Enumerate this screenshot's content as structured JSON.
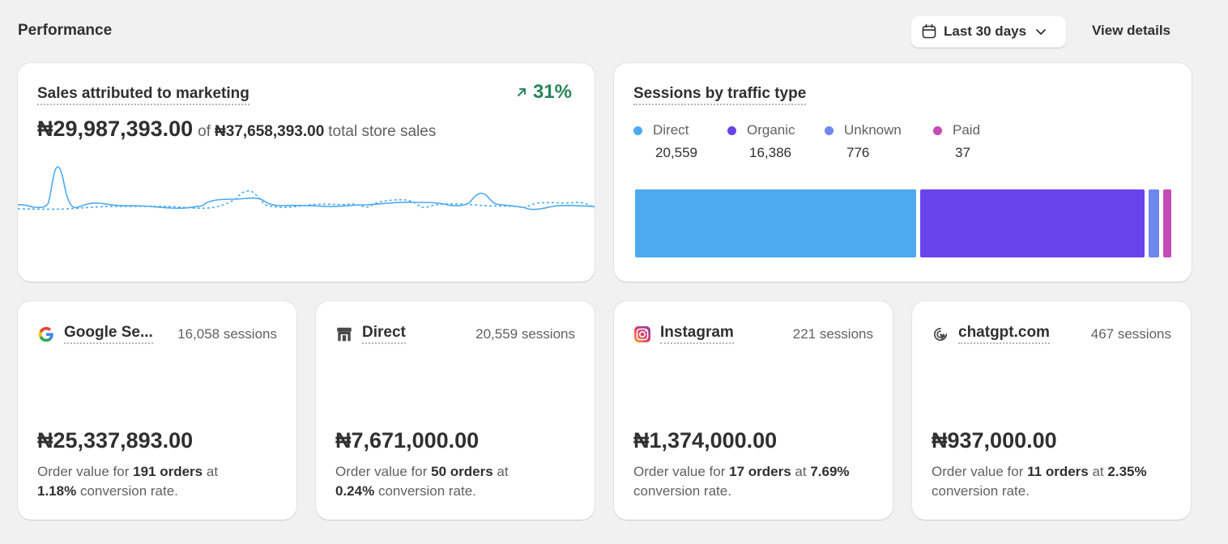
{
  "header": {
    "title": "Performance",
    "date_range": "Last 30 days",
    "view_details": "View details"
  },
  "sales_card": {
    "title": "Sales attributed to marketing",
    "change": "31%",
    "amount": "₦29,987,393.00",
    "of_label": "of",
    "total_amount": "₦37,658,393.00",
    "total_suffix": "total store sales"
  },
  "sessions_card": {
    "title": "Sessions by traffic type",
    "legend": [
      {
        "label": "Direct",
        "value": "20,559",
        "color": "#4daaf0"
      },
      {
        "label": "Organic",
        "value": "16,386",
        "color": "#6943eb"
      },
      {
        "label": "Unknown",
        "value": "776",
        "color": "#6f87ee"
      },
      {
        "label": "Paid",
        "value": "37",
        "color": "#c44ab5"
      }
    ]
  },
  "chart_data": {
    "type": "stacked-bar",
    "categories": [
      "Direct",
      "Organic",
      "Unknown",
      "Paid"
    ],
    "values": [
      20559,
      16386,
      776,
      37
    ]
  },
  "sources": [
    {
      "icon": "google-icon",
      "name": "Google Se...",
      "sessions": "16,058 sessions",
      "value": "₦25,337,893.00",
      "desc_prefix": "Order value for",
      "orders": "191 orders",
      "desc_at": "at",
      "rate": "1.18%",
      "desc_suffix": "conversion rate."
    },
    {
      "icon": "store-icon",
      "name": "Direct",
      "sessions": "20,559 sessions",
      "value": "₦7,671,000.00",
      "desc_prefix": "Order value for",
      "orders": "50 orders",
      "desc_at": "at",
      "rate": "0.24%",
      "desc_suffix": "conversion rate."
    },
    {
      "icon": "instagram-icon",
      "name": "Instagram",
      "sessions": "221 sessions",
      "value": "₦1,374,000.00",
      "desc_prefix": "Order value for",
      "orders": "17 orders",
      "desc_at": "at",
      "rate": "7.69%",
      "desc_suffix": "conversion rate."
    },
    {
      "icon": "referral-icon",
      "name": "chatgpt.com",
      "sessions": "467 sessions",
      "value": "₦937,000.00",
      "desc_prefix": "Order value for",
      "orders": "11 orders",
      "desc_at": "at",
      "rate": "2.35%",
      "desc_suffix": "conversion rate."
    }
  ]
}
